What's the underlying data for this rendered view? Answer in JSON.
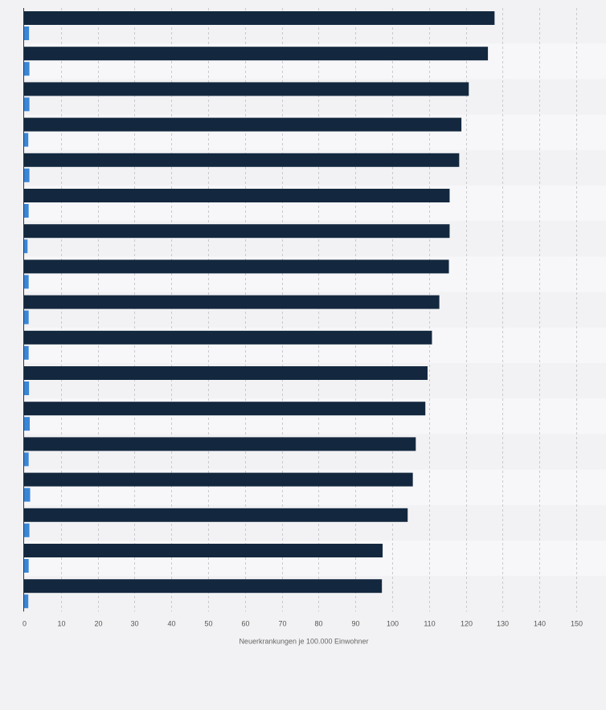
{
  "chart_data": {
    "type": "bar",
    "orientation": "horizontal",
    "xlabel": "Neuerkrankungen je 100.000 Einwohner",
    "xlim": [
      0,
      150
    ],
    "xticks": [
      0,
      10,
      20,
      30,
      40,
      50,
      60,
      70,
      80,
      90,
      100,
      110,
      120,
      130,
      140,
      150
    ],
    "grid": true,
    "legend": "none",
    "colors": {
      "series1": "#13283f",
      "series2": "#3a86d6",
      "stripe": "#f2f2f4",
      "stripe_alt": "#f7f7f9",
      "grid": "#c9c9cf",
      "axis": "#333333",
      "tick_text": "#555555"
    },
    "series": [
      {
        "values": [
          127.8,
          126.0,
          120.8,
          118.8,
          118.2,
          115.6,
          115.6,
          115.4,
          112.8,
          110.8,
          109.6,
          109.0,
          106.4,
          105.6,
          104.2,
          97.4,
          97.2
        ]
      },
      {
        "values": [
          0.9,
          1.0,
          1.0,
          0.7,
          1.0,
          0.8,
          0.5,
          0.8,
          0.8,
          0.8,
          0.9,
          1.1,
          0.8,
          1.2,
          1.0,
          0.8,
          0.7
        ]
      }
    ]
  }
}
